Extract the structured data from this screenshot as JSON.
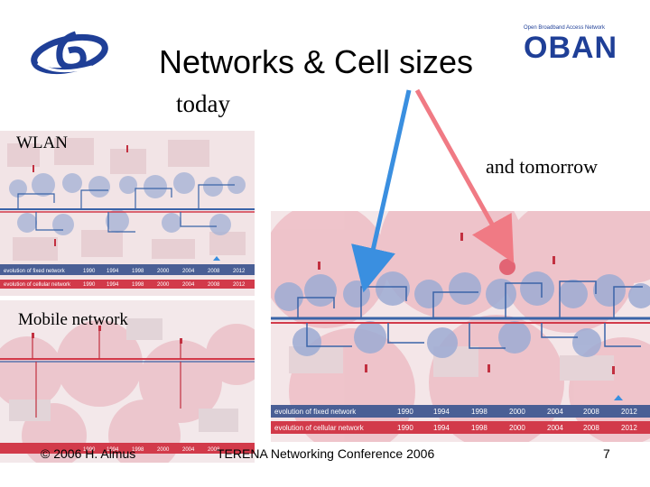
{
  "slide": {
    "title": "Networks & Cell sizes",
    "subtitle": "today",
    "label_wlan": "WLAN",
    "label_tomorrow": "and tomorrow",
    "label_mobile": "Mobile network"
  },
  "logos": {
    "left_logo_name": "fp6-logo",
    "right_tagline": "Open Broadband Access Network",
    "right_brand": "OBAN"
  },
  "map_small_top": {
    "fixed_label": "evolution of fixed network",
    "cellular_label": "evolution of cellular network",
    "years": [
      "1990",
      "1994",
      "1998",
      "2000",
      "2004",
      "2008",
      "2012"
    ]
  },
  "map_small_bottom": {
    "years": [
      "1990",
      "1994",
      "1998",
      "2000",
      "2004",
      "2008"
    ]
  },
  "map_large": {
    "fixed_label": "evolution of fixed network",
    "cellular_label": "evolution of cellular network",
    "years": [
      "1990",
      "1994",
      "1998",
      "2000",
      "2004",
      "2008",
      "2012"
    ]
  },
  "footer": {
    "left": "© 2006 H. Almus",
    "center": "TERENA Networking Conference 2006",
    "page": "7"
  },
  "colors": {
    "accent_blue": "#3a64a8",
    "accent_red": "#d23a4a",
    "arrow_blue": "#3a8fe0",
    "arrow_red": "#f07a84"
  }
}
